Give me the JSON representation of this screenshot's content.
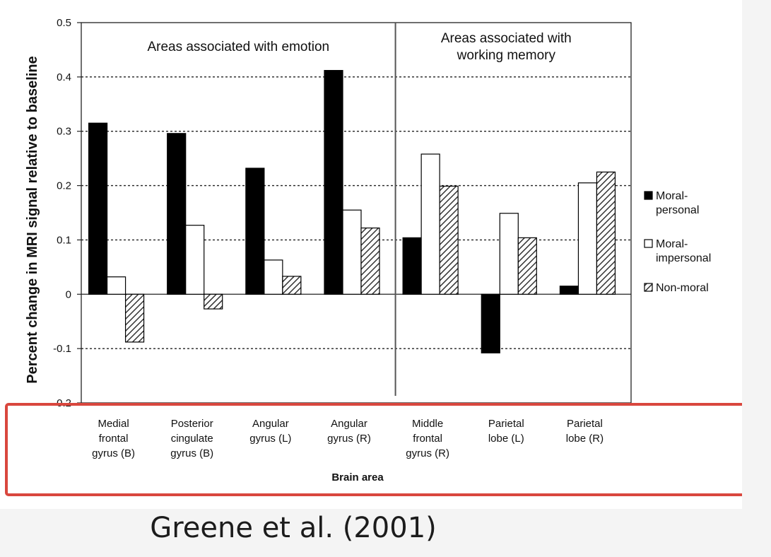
{
  "caption": "Greene et al. (2001)",
  "chart_data": {
    "type": "bar",
    "title": "",
    "ylabel": "Percent change in MRI signal relative to baseline",
    "xlabel": "Brain area",
    "ylim": [
      -0.2,
      0.5
    ],
    "yticks": [
      {
        "value": 0.5,
        "label": "0.5"
      },
      {
        "value": 0.4,
        "label": "0.4"
      },
      {
        "value": 0.3,
        "label": "0.3"
      },
      {
        "value": 0.2,
        "label": "0.2"
      },
      {
        "value": 0.1,
        "label": "0.1"
      },
      {
        "value": 0,
        "label": "0"
      },
      {
        "value": -0.1,
        "label": "-0.1"
      },
      {
        "value": -0.2,
        "label": "-0.2"
      }
    ],
    "grid": "dotted horizontal",
    "categories": [
      "Medial frontal gyrus (B)",
      "Posterior cingulate gyrus (B)",
      "Angular gyrus (L)",
      "Angular gyrus (R)",
      "Middle frontal gyrus (R)",
      "Parietal lobe (L)",
      "Parietal lobe (R)"
    ],
    "category_lines": [
      [
        "Medial",
        "frontal",
        "gyrus (B)"
      ],
      [
        "Posterior",
        "cingulate",
        "gyrus (B)"
      ],
      [
        "Angular",
        "gyrus (L)"
      ],
      [
        "Angular",
        "gyrus (R)"
      ],
      [
        "Middle",
        "frontal",
        "gyrus (R)"
      ],
      [
        "Parietal",
        "lobe (L)"
      ],
      [
        "Parietal",
        "lobe (R)"
      ]
    ],
    "series": [
      {
        "name": "Moral-personal",
        "legend_lines": [
          "Moral-",
          "personal"
        ],
        "fill": "black",
        "values": [
          0.315,
          0.296,
          0.232,
          0.412,
          0.104,
          -0.108,
          0.015
        ]
      },
      {
        "name": "Moral-impersonal",
        "legend_lines": [
          "Moral-",
          "impersonal"
        ],
        "fill": "white",
        "values": [
          0.032,
          0.127,
          0.063,
          0.155,
          0.258,
          0.149,
          0.205
        ]
      },
      {
        "name": "Non-moral",
        "legend_lines": [
          "Non-moral"
        ],
        "fill": "hatched",
        "values": [
          -0.088,
          -0.027,
          0.033,
          0.122,
          0.199,
          0.104,
          0.225
        ]
      }
    ],
    "regions": [
      {
        "lines": [
          "Areas associated with emotion"
        ],
        "categories": [
          0,
          1,
          2,
          3
        ]
      },
      {
        "lines": [
          "Areas associated with",
          "working memory"
        ],
        "categories": [
          4,
          5,
          6
        ]
      }
    ],
    "legend_position": "right",
    "highlight": {
      "label": "x-axis labels highlighted",
      "color": "#d9473e"
    }
  }
}
